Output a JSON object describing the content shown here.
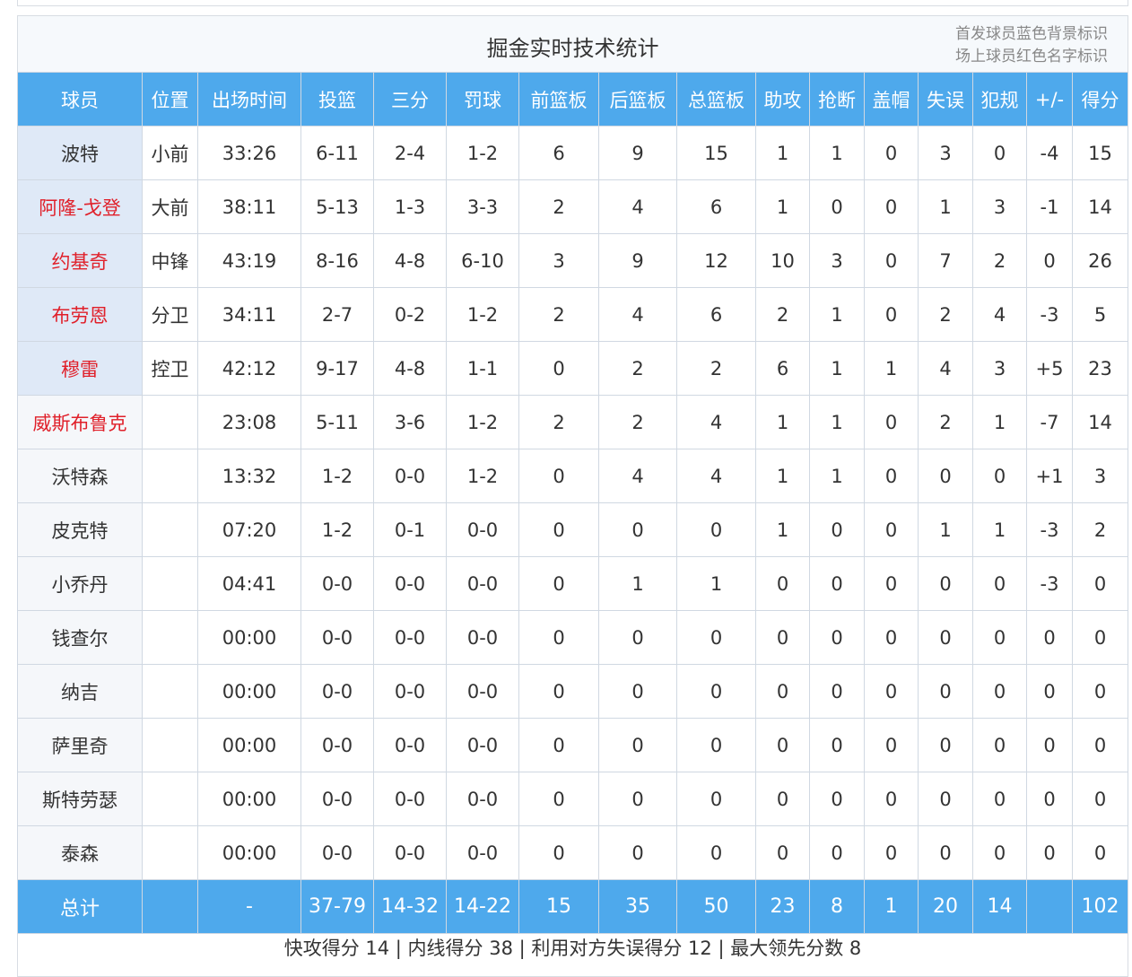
{
  "title": "掘金实时技术统计",
  "legend": [
    "首发球员蓝色背景标识",
    "场上球员红色名字标识"
  ],
  "colors": {
    "header": "#4ea9ec",
    "starter_bg": "#dfe9f7",
    "on_court_name": "#e0202a"
  },
  "columns": [
    "球员",
    "位置",
    "出场时间",
    "投篮",
    "三分",
    "罚球",
    "前篮板",
    "后篮板",
    "总篮板",
    "助攻",
    "抢断",
    "盖帽",
    "失误",
    "犯规",
    "+/-",
    "得分"
  ],
  "rows": [
    {
      "starter": true,
      "on_court": false,
      "cells": [
        "波特",
        "小前",
        "33:26",
        "6-11",
        "2-4",
        "1-2",
        "6",
        "9",
        "15",
        "1",
        "1",
        "0",
        "3",
        "0",
        "-4",
        "15"
      ]
    },
    {
      "starter": true,
      "on_court": true,
      "cells": [
        "阿隆-戈登",
        "大前",
        "38:11",
        "5-13",
        "1-3",
        "3-3",
        "2",
        "4",
        "6",
        "1",
        "0",
        "0",
        "1",
        "3",
        "-1",
        "14"
      ]
    },
    {
      "starter": true,
      "on_court": true,
      "cells": [
        "约基奇",
        "中锋",
        "43:19",
        "8-16",
        "4-8",
        "6-10",
        "3",
        "9",
        "12",
        "10",
        "3",
        "0",
        "7",
        "2",
        "0",
        "26"
      ]
    },
    {
      "starter": true,
      "on_court": true,
      "cells": [
        "布劳恩",
        "分卫",
        "34:11",
        "2-7",
        "0-2",
        "1-2",
        "2",
        "4",
        "6",
        "2",
        "1",
        "0",
        "2",
        "4",
        "-3",
        "5"
      ]
    },
    {
      "starter": true,
      "on_court": true,
      "cells": [
        "穆雷",
        "控卫",
        "42:12",
        "9-17",
        "4-8",
        "1-1",
        "0",
        "2",
        "2",
        "6",
        "1",
        "1",
        "4",
        "3",
        "+5",
        "23"
      ]
    },
    {
      "starter": false,
      "on_court": true,
      "cells": [
        "威斯布鲁克",
        "",
        "23:08",
        "5-11",
        "3-6",
        "1-2",
        "2",
        "2",
        "4",
        "1",
        "1",
        "0",
        "2",
        "1",
        "-7",
        "14"
      ]
    },
    {
      "starter": false,
      "on_court": false,
      "cells": [
        "沃特森",
        "",
        "13:32",
        "1-2",
        "0-0",
        "1-2",
        "0",
        "4",
        "4",
        "1",
        "1",
        "0",
        "0",
        "0",
        "+1",
        "3"
      ]
    },
    {
      "starter": false,
      "on_court": false,
      "cells": [
        "皮克特",
        "",
        "07:20",
        "1-2",
        "0-1",
        "0-0",
        "0",
        "0",
        "0",
        "1",
        "0",
        "0",
        "1",
        "1",
        "-3",
        "2"
      ]
    },
    {
      "starter": false,
      "on_court": false,
      "cells": [
        "小乔丹",
        "",
        "04:41",
        "0-0",
        "0-0",
        "0-0",
        "0",
        "1",
        "1",
        "0",
        "0",
        "0",
        "0",
        "0",
        "-3",
        "0"
      ]
    },
    {
      "starter": false,
      "on_court": false,
      "cells": [
        "钱查尔",
        "",
        "00:00",
        "0-0",
        "0-0",
        "0-0",
        "0",
        "0",
        "0",
        "0",
        "0",
        "0",
        "0",
        "0",
        "0",
        "0"
      ]
    },
    {
      "starter": false,
      "on_court": false,
      "cells": [
        "纳吉",
        "",
        "00:00",
        "0-0",
        "0-0",
        "0-0",
        "0",
        "0",
        "0",
        "0",
        "0",
        "0",
        "0",
        "0",
        "0",
        "0"
      ]
    },
    {
      "starter": false,
      "on_court": false,
      "cells": [
        "萨里奇",
        "",
        "00:00",
        "0-0",
        "0-0",
        "0-0",
        "0",
        "0",
        "0",
        "0",
        "0",
        "0",
        "0",
        "0",
        "0",
        "0"
      ]
    },
    {
      "starter": false,
      "on_court": false,
      "cells": [
        "斯特劳瑟",
        "",
        "00:00",
        "0-0",
        "0-0",
        "0-0",
        "0",
        "0",
        "0",
        "0",
        "0",
        "0",
        "0",
        "0",
        "0",
        "0"
      ]
    },
    {
      "starter": false,
      "on_court": false,
      "cells": [
        "泰森",
        "",
        "00:00",
        "0-0",
        "0-0",
        "0-0",
        "0",
        "0",
        "0",
        "0",
        "0",
        "0",
        "0",
        "0",
        "0",
        "0"
      ]
    }
  ],
  "total": [
    "总计",
    "",
    "-",
    "37-79",
    "14-32",
    "14-22",
    "15",
    "35",
    "50",
    "23",
    "8",
    "1",
    "20",
    "14",
    "",
    "102"
  ],
  "footer": "快攻得分 14 | 内线得分 38 | 利用对方失误得分 12 | 最大领先分数 8"
}
